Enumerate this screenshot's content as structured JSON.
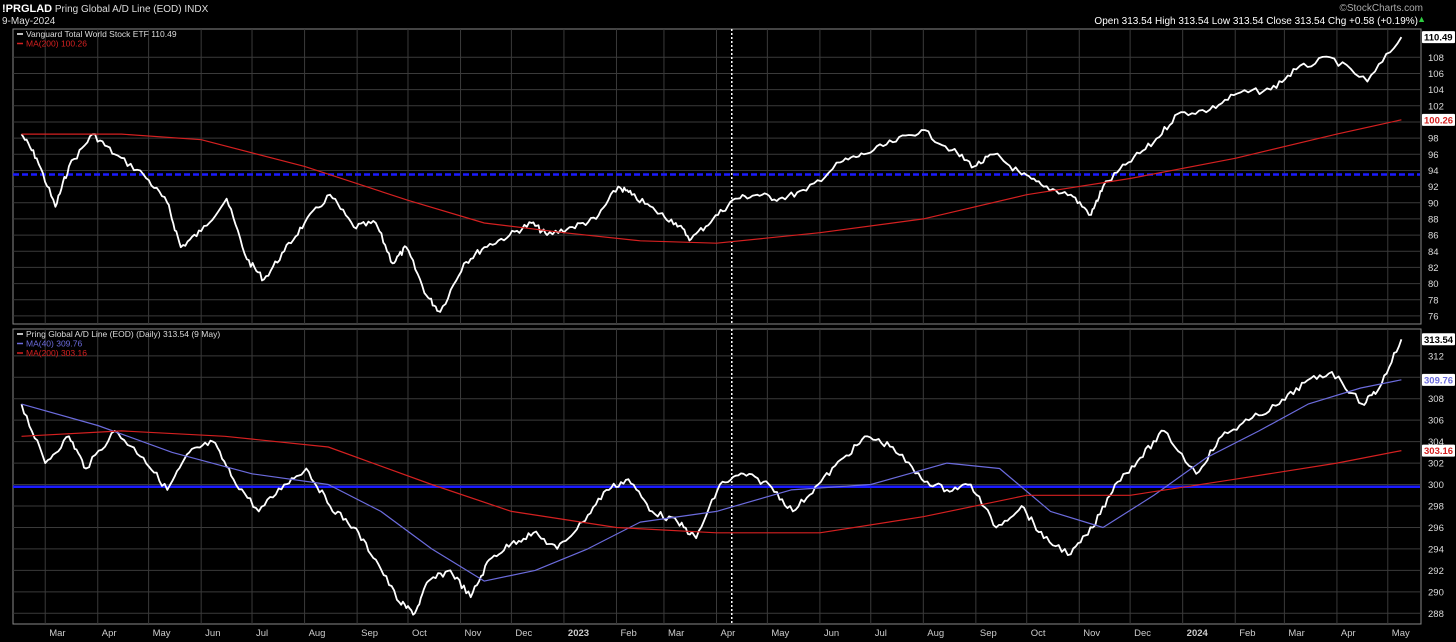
{
  "header": {
    "symbol": "!PRGLAD",
    "description": "Pring Global A/D Line (EOD)",
    "exchange": "INDX",
    "date": "9-May-2024",
    "brand": "©StockCharts.com",
    "ohlc": "Open 313.54  High 313.54  Low 313.54  Close 313.54  Chg +0.58 (+0.19%)"
  },
  "colors": {
    "background": "#000000",
    "grid": "#3a3a3a",
    "price": "#ffffff",
    "ma200": "#d42020",
    "ma40": "#6b6bdc",
    "hline": "#1a1aff"
  },
  "chart_data": [
    {
      "type": "line",
      "panel": "upper",
      "title": "Vanguard Total World Stock ETF 110.49",
      "legend": [
        {
          "label": "Vanguard Total World Stock ETF 110.49",
          "color": "#ffffff"
        },
        {
          "label": "MA(200) 100.26",
          "color": "#d42020"
        }
      ],
      "ylim": [
        75,
        111.5
      ],
      "y_ticks": [
        "76",
        "78",
        "80",
        "82",
        "84",
        "86",
        "88",
        "90",
        "92",
        "94",
        "96",
        "98",
        "100",
        "102",
        "104",
        "106",
        "108"
      ],
      "last_value": "110.49",
      "ma_value": "100.26",
      "horizontal_line": 93.5,
      "series": [
        {
          "name": "Vanguard Total World Stock ETF 110.49",
          "color": "#ffffff",
          "x": [
            "2022-02-15",
            "2022-02-24",
            "2022-03-07",
            "2022-03-15",
            "2022-03-29",
            "2022-04-11",
            "2022-04-28",
            "2022-05-12",
            "2022-05-20",
            "2022-06-01",
            "2022-06-16",
            "2022-06-28",
            "2022-07-08",
            "2022-07-20",
            "2022-08-01",
            "2022-08-16",
            "2022-08-30",
            "2022-09-12",
            "2022-09-22",
            "2022-09-30",
            "2022-10-12",
            "2022-10-20",
            "2022-11-03",
            "2022-11-15",
            "2022-11-30",
            "2022-12-13",
            "2022-12-22",
            "2023-01-06",
            "2023-01-20",
            "2023-02-02",
            "2023-02-10",
            "2023-02-24",
            "2023-03-08",
            "2023-03-17",
            "2023-03-30",
            "2023-04-12",
            "2023-04-25",
            "2023-05-08",
            "2023-05-24",
            "2023-06-13",
            "2023-06-27",
            "2023-07-14",
            "2023-07-31",
            "2023-08-18",
            "2023-08-31",
            "2023-09-12",
            "2023-09-28",
            "2023-10-11",
            "2023-10-27",
            "2023-11-08",
            "2023-11-15",
            "2023-11-30",
            "2023-12-15",
            "2023-12-29",
            "2024-01-17",
            "2024-02-02",
            "2024-02-22",
            "2024-03-08",
            "2024-03-28",
            "2024-04-19",
            "2024-05-09"
          ],
          "y": [
            98.5,
            95.5,
            89.5,
            94.5,
            98.5,
            96.0,
            93.5,
            90.0,
            84.5,
            86.5,
            90.5,
            83.0,
            80.5,
            84.0,
            87.5,
            91.0,
            87.0,
            87.5,
            82.5,
            84.5,
            78.5,
            76.5,
            82.5,
            84.5,
            86.0,
            87.5,
            86.0,
            87.0,
            88.0,
            92.0,
            91.0,
            89.0,
            87.5,
            85.5,
            88.0,
            90.5,
            91.0,
            90.5,
            91.5,
            95.0,
            96.0,
            97.5,
            99.0,
            96.5,
            94.5,
            96.0,
            93.5,
            92.0,
            91.0,
            88.5,
            92.0,
            95.0,
            97.5,
            101.0,
            101.5,
            103.5,
            104.0,
            106.5,
            108.0,
            105.0,
            110.5
          ]
        },
        {
          "name": "MA(200) 100.26",
          "color": "#d42020",
          "x": [
            "2022-02-15",
            "2022-04-15",
            "2022-06-01",
            "2022-08-01",
            "2022-10-01",
            "2022-11-15",
            "2023-01-01",
            "2023-02-15",
            "2023-04-01",
            "2023-06-01",
            "2023-08-01",
            "2023-10-01",
            "2023-12-01",
            "2024-02-01",
            "2024-04-01",
            "2024-05-09"
          ],
          "y": [
            98.5,
            98.5,
            97.8,
            94.5,
            90.3,
            87.5,
            86.3,
            85.3,
            85.0,
            86.3,
            88.0,
            91.0,
            93.0,
            95.5,
            98.5,
            100.26
          ]
        }
      ]
    },
    {
      "type": "line",
      "panel": "lower",
      "title": "Pring Global A/D Line (EOD) (Daily) 313.54 (9 May)",
      "legend": [
        {
          "label": "Pring Global A/D Line (EOD) (Daily) 313.54 (9 May)",
          "color": "#ffffff"
        },
        {
          "label": "MA(40) 309.76",
          "color": "#6b6bdc"
        },
        {
          "label": "MA(200) 303.16",
          "color": "#d42020"
        }
      ],
      "ylim": [
        287,
        314.5
      ],
      "y_ticks": [
        "288",
        "290",
        "292",
        "294",
        "296",
        "298",
        "300",
        "302",
        "304",
        "306",
        "308",
        "310",
        "312"
      ],
      "last_value": "313.54",
      "ma40_value": "309.76",
      "ma200_value": "303.16",
      "horizontal_line": 299.8,
      "x_labels": [
        "Mar",
        "Apr",
        "May",
        "Jun",
        "Jul",
        "Aug",
        "Sep",
        "Oct",
        "Nov",
        "Dec",
        "2023",
        "Feb",
        "Mar",
        "Apr",
        "May",
        "Jun",
        "Jul",
        "Aug",
        "Sep",
        "Oct",
        "Nov",
        "Dec",
        "2024",
        "Feb",
        "Mar",
        "Apr",
        "May"
      ],
      "vertical_marker": "2023-04-10",
      "series": [
        {
          "name": "Pring Global A/D Line (EOD) (Daily) 313.54 (9 May)",
          "color": "#ffffff",
          "x": [
            "2022-02-15",
            "2022-03-01",
            "2022-03-15",
            "2022-03-25",
            "2022-04-11",
            "2022-04-28",
            "2022-05-12",
            "2022-05-25",
            "2022-06-08",
            "2022-06-20",
            "2022-07-05",
            "2022-07-20",
            "2022-08-02",
            "2022-08-16",
            "2022-08-30",
            "2022-09-12",
            "2022-09-26",
            "2022-10-05",
            "2022-10-13",
            "2022-10-26",
            "2022-11-07",
            "2022-11-18",
            "2022-12-01",
            "2022-12-14",
            "2022-12-28",
            "2023-01-12",
            "2023-01-26",
            "2023-02-08",
            "2023-02-22",
            "2023-03-09",
            "2023-03-20",
            "2023-04-03",
            "2023-04-17",
            "2023-05-02",
            "2023-05-16",
            "2023-05-31",
            "2023-06-15",
            "2023-06-29",
            "2023-07-14",
            "2023-07-31",
            "2023-08-15",
            "2023-08-29",
            "2023-09-13",
            "2023-09-28",
            "2023-10-11",
            "2023-10-27",
            "2023-11-09",
            "2023-11-22",
            "2023-12-07",
            "2023-12-21",
            "2024-01-09",
            "2024-01-24",
            "2024-02-09",
            "2024-02-27",
            "2024-03-13",
            "2024-03-29",
            "2024-04-16",
            "2024-04-26",
            "2024-05-09"
          ],
          "y": [
            307.5,
            302.0,
            304.5,
            301.5,
            305.0,
            302.5,
            299.5,
            303.0,
            304.0,
            300.5,
            297.5,
            300.0,
            301.5,
            298.0,
            296.0,
            293.0,
            289.0,
            288.0,
            291.0,
            292.0,
            289.5,
            293.0,
            294.5,
            295.5,
            294.0,
            296.5,
            299.5,
            300.5,
            297.5,
            296.5,
            295.0,
            300.0,
            301.0,
            300.0,
            297.5,
            300.0,
            302.5,
            304.5,
            303.5,
            300.5,
            299.5,
            300.0,
            296.0,
            298.0,
            295.0,
            293.5,
            296.0,
            300.0,
            302.5,
            305.0,
            301.0,
            304.5,
            306.0,
            307.5,
            309.5,
            310.5,
            307.5,
            309.0,
            313.54
          ]
        },
        {
          "name": "MA(40) 309.76",
          "color": "#6b6bdc",
          "x": [
            "2022-02-15",
            "2022-04-01",
            "2022-05-15",
            "2022-07-01",
            "2022-08-15",
            "2022-09-15",
            "2022-10-15",
            "2022-11-15",
            "2022-12-15",
            "2023-01-15",
            "2023-02-15",
            "2023-04-01",
            "2023-05-15",
            "2023-07-01",
            "2023-08-15",
            "2023-09-15",
            "2023-10-15",
            "2023-11-15",
            "2023-12-15",
            "2024-01-15",
            "2024-02-15",
            "2024-03-15",
            "2024-04-15",
            "2024-05-09"
          ],
          "y": [
            307.5,
            305.5,
            303.0,
            301.0,
            300.0,
            297.5,
            294.0,
            291.0,
            292.0,
            294.0,
            296.5,
            297.5,
            299.5,
            300.0,
            302.0,
            301.5,
            297.5,
            296.0,
            299.0,
            302.5,
            305.0,
            307.5,
            309.0,
            309.76
          ]
        },
        {
          "name": "MA(200) 303.16",
          "color": "#d42020",
          "x": [
            "2022-02-15",
            "2022-04-15",
            "2022-06-15",
            "2022-08-15",
            "2022-10-15",
            "2022-12-01",
            "2023-02-01",
            "2023-04-01",
            "2023-06-01",
            "2023-08-01",
            "2023-10-01",
            "2023-12-01",
            "2024-02-01",
            "2024-04-01",
            "2024-05-09"
          ],
          "y": [
            304.5,
            305.0,
            304.5,
            303.5,
            300.0,
            297.5,
            296.0,
            295.5,
            295.5,
            297.0,
            299.0,
            299.0,
            300.5,
            302.0,
            303.16
          ]
        }
      ]
    }
  ]
}
